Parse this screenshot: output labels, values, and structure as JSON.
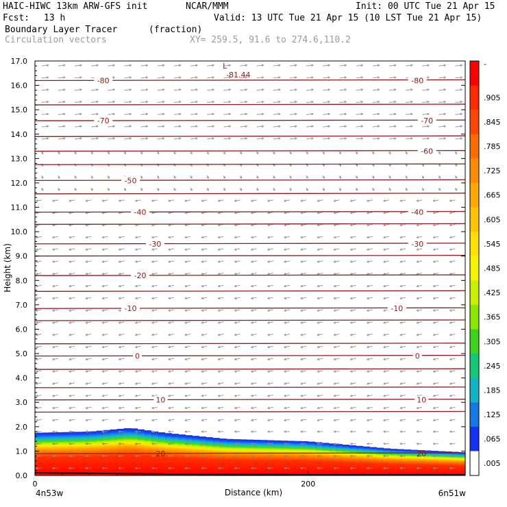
{
  "header": {
    "model": "HAIC-HIWC 13km ARW-GFS init",
    "org": "NCAR/MMM",
    "init": "Init: 00 UTC Tue 21 Apr 15",
    "fcst_label": "Fcst:",
    "fcst_value": "13 h",
    "valid": "Valid: 13 UTC Tue 21 Apr 15 (10 LST Tue 21 Apr 15)",
    "field": "Boundary Layer Tracer",
    "units": "(fraction)",
    "vectors": "Circulation vectors",
    "xy": "XY= 259.5, 91.6 to 274.6,110.2"
  },
  "chart_data": {
    "type": "heatmap",
    "ylabel": "Height (km)",
    "xlabel": "Distance (km)",
    "ylim": [
      0,
      17
    ],
    "yticks": [
      "0.0",
      "1.0",
      "2.0",
      "3.0",
      "4.0",
      "5.0",
      "6.0",
      "7.0",
      "8.0",
      "9.0",
      "10.0",
      "11.0",
      "12.0",
      "13.0",
      "14.0",
      "15.0",
      "16.0",
      "17.0"
    ],
    "xlim": [
      0,
      315
    ],
    "xticks": [
      {
        "value": 0,
        "label": "0"
      },
      {
        "value": 200,
        "label": "200"
      }
    ],
    "x_endpoints": {
      "left": "4n53w",
      "right": "6n51w"
    },
    "colorbar": {
      "labels": [
        "-",
        ".905",
        ".845",
        ".785",
        ".725",
        ".665",
        ".605",
        ".545",
        ".485",
        ".425",
        ".365",
        ".305",
        ".245",
        ".185",
        ".125",
        ".065",
        ".005"
      ],
      "colors": [
        "#ff0000",
        "#ff2a00",
        "#ff4600",
        "#ff6a00",
        "#ff8c00",
        "#ffa800",
        "#ffc400",
        "#ffe000",
        "#f5f500",
        "#c8f000",
        "#8ce600",
        "#3cd21e",
        "#14c878",
        "#14b4c8",
        "#1478e6",
        "#1432f0",
        "#ffffff"
      ]
    },
    "tracer_top_km": [
      {
        "x": 0,
        "top": 1.75
      },
      {
        "x": 40,
        "top": 1.8
      },
      {
        "x": 70,
        "top": 1.95
      },
      {
        "x": 95,
        "top": 1.75
      },
      {
        "x": 140,
        "top": 1.5
      },
      {
        "x": 200,
        "top": 1.4
      },
      {
        "x": 260,
        "top": 1.1
      },
      {
        "x": 315,
        "top": 0.95
      }
    ],
    "isotherms": [
      {
        "y": 16.2,
        "label": "-80",
        "lx": [
          50,
          280
        ]
      },
      {
        "y": 14.55,
        "label": "-70",
        "lx": [
          50,
          287
        ]
      },
      {
        "y": 13.3,
        "label": "-60",
        "lx": [
          287
        ]
      },
      {
        "y": 12.1,
        "label": "-50",
        "lx": [
          70
        ]
      },
      {
        "y": 10.8,
        "label": "-40",
        "lx": [
          77,
          280
        ]
      },
      {
        "y": 9.5,
        "label": "-30",
        "lx": [
          88,
          280
        ]
      },
      {
        "y": 8.2,
        "label": "-20",
        "lx": [
          77
        ]
      },
      {
        "y": 6.85,
        "label": "-10",
        "lx": [
          70,
          265
        ]
      },
      {
        "y": 4.9,
        "label": "0",
        "lx": [
          75,
          280
        ]
      },
      {
        "y": 3.1,
        "label": "10",
        "lx": [
          92,
          283
        ]
      },
      {
        "y": 0.9,
        "label": "20",
        "lx": [
          92,
          283
        ]
      }
    ],
    "extra_isotherm_levels_km": [
      15.2,
      13.9,
      12.75,
      11.55,
      10.3,
      9.0,
      7.55,
      6.35,
      5.4,
      4.35,
      3.6,
      2.6
    ],
    "low_marker": {
      "symbol": "L",
      "value": "-81.44",
      "x": 145,
      "y": 16.75
    }
  }
}
